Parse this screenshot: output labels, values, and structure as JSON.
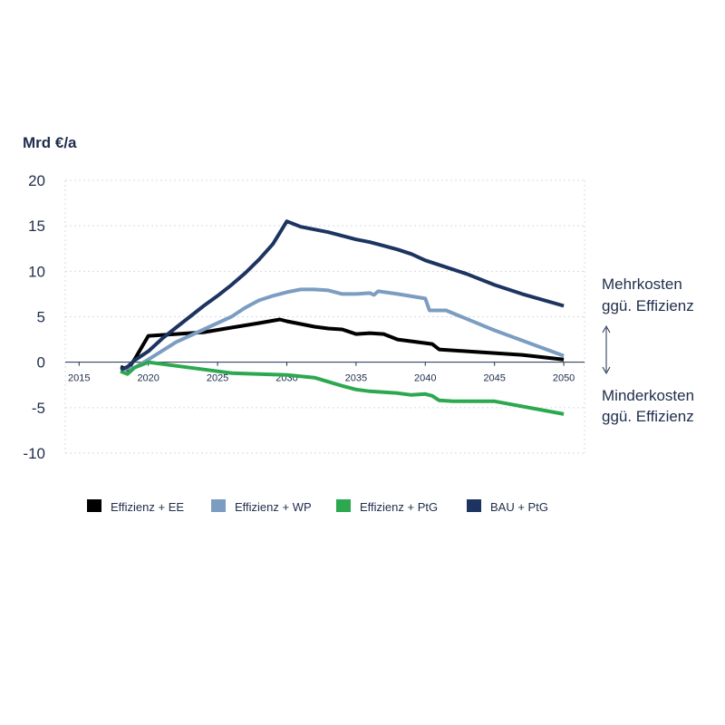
{
  "chart_data": {
    "type": "line",
    "ylabel": "Mrd €/a",
    "ylim": [
      -10,
      20
    ],
    "yticks": [
      20,
      15,
      10,
      5,
      0,
      -5,
      -10
    ],
    "xlim": [
      2014,
      2051.5
    ],
    "xticks": [
      2015,
      2020,
      2025,
      2030,
      2035,
      2040,
      2045,
      2050
    ],
    "grid": "horizontal dotted",
    "legend_position": "bottom",
    "annotations": {
      "upper": [
        "Mehrkosten",
        "ggü. Effizienz"
      ],
      "lower": [
        "Minderkosten",
        "ggü. Effizienz"
      ]
    },
    "series": [
      {
        "name": "Effizienz + EE",
        "color": "#000000",
        "x": [
          2018,
          2018.5,
          2019,
          2020,
          2022,
          2024,
          2026,
          2028,
          2029.5,
          2030,
          2031,
          2032,
          2033,
          2034,
          2035,
          2036,
          2037,
          2038,
          2039,
          2040,
          2040.5,
          2041,
          2043,
          2045,
          2047,
          2050
        ],
        "y": [
          -0.5,
          -0.8,
          0.3,
          2.9,
          3.1,
          3.3,
          3.8,
          4.3,
          4.7,
          4.5,
          4.2,
          3.9,
          3.7,
          3.6,
          3.1,
          3.2,
          3.1,
          2.5,
          2.3,
          2.1,
          2.0,
          1.4,
          1.2,
          1.0,
          0.8,
          0.3
        ]
      },
      {
        "name": "Effizienz + WP",
        "color": "#7b9dc2",
        "x": [
          2018,
          2019,
          2020,
          2022,
          2024,
          2026,
          2027,
          2028,
          2029,
          2030,
          2031,
          2032,
          2033,
          2034,
          2035,
          2036,
          2036.3,
          2036.6,
          2038,
          2040,
          2040.3,
          2041.5,
          2045,
          2050
        ],
        "y": [
          -0.8,
          -0.6,
          0.3,
          2.2,
          3.6,
          5.0,
          6.0,
          6.8,
          7.3,
          7.7,
          8.0,
          8.0,
          7.9,
          7.5,
          7.5,
          7.6,
          7.4,
          7.8,
          7.5,
          7.0,
          5.7,
          5.7,
          3.5,
          0.7
        ]
      },
      {
        "name": "Effizienz + PtG",
        "color": "#2ca84f",
        "x": [
          2018,
          2018.5,
          2019,
          2020,
          2022,
          2024,
          2026,
          2028,
          2030,
          2032,
          2034,
          2035,
          2036,
          2038,
          2039,
          2040,
          2040.5,
          2041,
          2042,
          2045,
          2050
        ],
        "y": [
          -1.0,
          -1.3,
          -0.6,
          0.0,
          -0.4,
          -0.8,
          -1.2,
          -1.3,
          -1.4,
          -1.7,
          -2.6,
          -3.0,
          -3.2,
          -3.4,
          -3.6,
          -3.5,
          -3.7,
          -4.2,
          -4.3,
          -4.3,
          -5.7
        ]
      },
      {
        "name": "BAU + PtG",
        "color": "#1d3461",
        "x": [
          2018,
          2018.5,
          2019,
          2020,
          2021,
          2022,
          2023,
          2024,
          2025,
          2026,
          2027,
          2028,
          2029,
          2030,
          2031,
          2032,
          2033,
          2034,
          2035,
          2036,
          2037,
          2038,
          2039,
          2040,
          2041,
          2043,
          2045,
          2047,
          2050
        ],
        "y": [
          -0.8,
          -0.5,
          0.2,
          1.2,
          2.6,
          3.8,
          5.0,
          6.2,
          7.3,
          8.5,
          9.8,
          11.3,
          13.0,
          15.5,
          14.9,
          14.6,
          14.3,
          13.9,
          13.5,
          13.2,
          12.8,
          12.4,
          11.9,
          11.2,
          10.7,
          9.7,
          8.5,
          7.5,
          6.2
        ]
      }
    ]
  }
}
